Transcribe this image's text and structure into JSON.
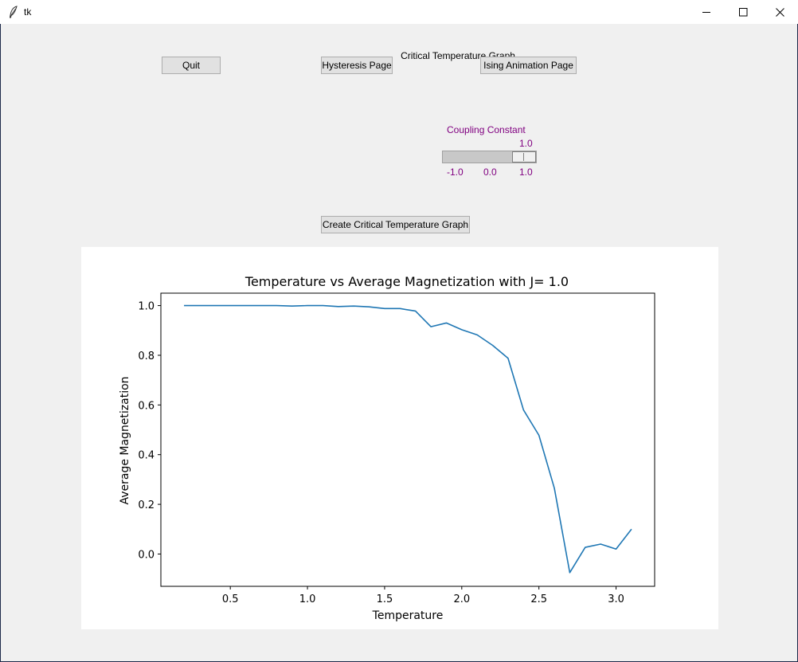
{
  "window": {
    "title": "tk",
    "icon": "feather-icon",
    "controls": [
      "minimize-icon",
      "maximize-icon",
      "close-icon"
    ]
  },
  "page": {
    "heading": "Critical Temperature Graph",
    "buttons": {
      "quit": "Quit",
      "hysteresis": "Hysteresis Page",
      "ising": "Ising Animation Page",
      "create_graph": "Create Critical Temperature Graph"
    },
    "scale": {
      "label": "Coupling Constant",
      "value": 1.0,
      "value_text": "1.0",
      "min": -1.0,
      "max": 1.0,
      "tick_labels": [
        "-1.0",
        "0.0",
        "1.0"
      ],
      "label_color": "#800080"
    }
  },
  "chart_data": {
    "type": "line",
    "title": "Temperature vs Average Magnetization with J= 1.0",
    "xlabel": "Temperature",
    "ylabel": "Average Magnetization",
    "xlim": [
      0.05,
      3.25
    ],
    "ylim": [
      -0.13,
      1.05
    ],
    "xticks": [
      0.5,
      1.0,
      1.5,
      2.0,
      2.5,
      3.0
    ],
    "xtick_labels": [
      "0.5",
      "1.0",
      "1.5",
      "2.0",
      "2.5",
      "3.0"
    ],
    "yticks": [
      0.0,
      0.2,
      0.4,
      0.6,
      0.8,
      1.0
    ],
    "ytick_labels": [
      "0.0",
      "0.2",
      "0.4",
      "0.6",
      "0.8",
      "1.0"
    ],
    "grid": false,
    "line_color": "#1f77b4",
    "x": [
      0.2,
      0.3,
      0.4,
      0.5,
      0.6,
      0.7,
      0.8,
      0.9,
      1.0,
      1.1,
      1.2,
      1.3,
      1.4,
      1.5,
      1.6,
      1.7,
      1.8,
      1.9,
      2.0,
      2.1,
      2.2,
      2.3,
      2.4,
      2.5,
      2.6,
      2.7,
      2.8,
      2.9,
      3.0,
      3.1
    ],
    "y": [
      1.0,
      1.0,
      1.0,
      1.0,
      1.0,
      1.0,
      1.0,
      0.998,
      1.0,
      1.0,
      0.996,
      0.998,
      0.995,
      0.988,
      0.988,
      0.978,
      0.915,
      0.93,
      0.903,
      0.882,
      0.84,
      0.788,
      0.58,
      0.478,
      0.265,
      -0.075,
      0.027,
      0.04,
      0.02,
      0.1
    ]
  }
}
